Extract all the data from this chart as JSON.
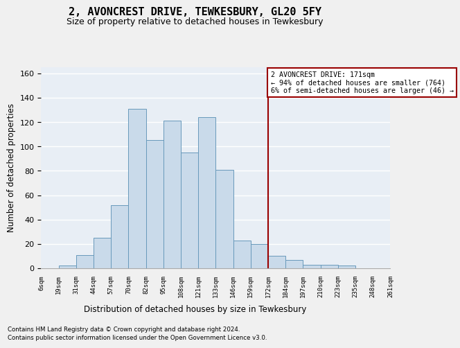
{
  "title": "2, AVONCREST DRIVE, TEWKESBURY, GL20 5FY",
  "subtitle": "Size of property relative to detached houses in Tewkesbury",
  "xlabel": "Distribution of detached houses by size in Tewkesbury",
  "ylabel": "Number of detached properties",
  "bar_labels": [
    "6sqm",
    "19sqm",
    "31sqm",
    "44sqm",
    "57sqm",
    "70sqm",
    "82sqm",
    "95sqm",
    "108sqm",
    "121sqm",
    "133sqm",
    "146sqm",
    "159sqm",
    "172sqm",
    "184sqm",
    "197sqm",
    "210sqm",
    "223sqm",
    "235sqm",
    "248sqm",
    "261sqm"
  ],
  "bar_heights": [
    0,
    2,
    11,
    25,
    52,
    131,
    105,
    121,
    95,
    124,
    81,
    23,
    20,
    10,
    7,
    3,
    3,
    2,
    0,
    0
  ],
  "bar_color": "#c9daea",
  "bar_edge_color": "#6899bb",
  "fig_background": "#f0f0f0",
  "ax_background": "#e8eef5",
  "grid_color": "#ffffff",
  "vline_color": "#990000",
  "annotation_text": "2 AVONCREST DRIVE: 171sqm\n← 94% of detached houses are smaller (764)\n6% of semi-detached houses are larger (46) →",
  "annotation_box_edgecolor": "#990000",
  "ylim": [
    0,
    165
  ],
  "yticks": [
    0,
    20,
    40,
    60,
    80,
    100,
    120,
    140,
    160
  ],
  "title_fontsize": 11,
  "subtitle_fontsize": 9,
  "footer1": "Contains HM Land Registry data © Crown copyright and database right 2024.",
  "footer2": "Contains public sector information licensed under the Open Government Licence v3.0."
}
